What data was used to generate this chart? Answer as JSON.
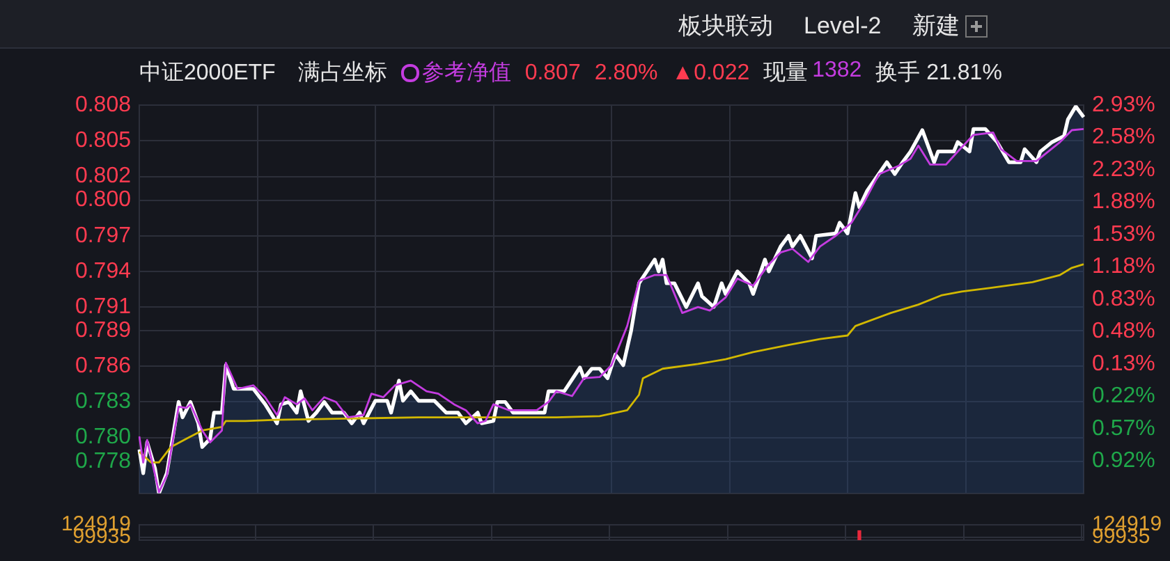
{
  "chart_data": [
    {
      "type": "line",
      "title": "中证2000ETF",
      "legend": "top",
      "grid": true,
      "tick_labels": "y",
      "marker": "none",
      "annotations": [
        "满占坐标",
        "0.807",
        "2.80%",
        "▲0.022",
        "现量",
        "1382",
        "换手 21.81%",
        "板块联动",
        "Level-2",
        "新建"
      ],
      "categories": [
        null,
        null,
        null,
        null,
        null,
        null,
        null,
        null,
        null,
        null,
        null,
        null,
        null,
        null,
        null,
        null,
        null,
        null,
        null,
        null,
        null,
        null,
        null,
        null,
        null,
        null,
        null,
        null,
        null,
        null,
        null,
        null,
        null,
        null,
        null,
        null,
        null,
        null,
        null,
        null,
        null,
        null,
        null,
        null,
        null,
        null,
        null,
        null,
        null,
        null,
        null,
        null,
        null,
        null,
        null,
        null,
        null,
        null,
        null,
        null,
        null,
        null,
        null,
        null,
        null,
        null,
        null,
        null,
        null,
        null,
        null,
        null,
        null,
        null,
        null,
        null,
        null,
        null,
        null,
        null,
        null,
        null,
        null,
        null,
        null,
        null,
        null,
        null,
        null,
        null,
        null,
        null,
        null,
        null,
        null,
        null,
        null,
        null,
        null,
        null,
        null,
        null,
        null,
        null,
        null,
        null,
        null,
        null,
        null,
        null,
        null,
        null,
        null,
        null,
        null,
        null,
        null,
        null,
        null,
        null,
        null,
        null,
        null,
        null,
        null,
        null,
        null,
        null,
        null,
        null,
        null,
        null,
        null,
        null,
        null,
        null,
        null,
        null,
        null,
        null,
        null,
        null,
        null,
        null,
        null,
        null,
        null,
        null,
        null,
        null,
        null,
        null,
        null,
        null,
        null,
        null,
        null,
        null,
        null,
        null,
        null,
        null,
        null,
        null,
        null,
        null,
        null,
        null,
        null,
        null,
        null,
        null,
        null,
        null,
        null,
        null,
        null,
        null,
        null,
        null,
        null,
        null,
        null,
        null,
        null,
        null,
        null,
        null,
        null,
        null,
        null,
        null,
        null,
        null,
        null,
        null,
        null,
        null,
        null,
        null,
        null,
        null,
        null,
        null,
        null,
        null,
        null,
        null,
        null,
        null,
        null,
        null,
        null,
        null,
        null,
        null,
        null,
        null,
        null,
        null,
        null,
        null,
        null,
        null,
        null,
        null,
        null,
        null,
        null,
        null,
        null,
        null,
        null,
        null,
        null,
        null,
        null,
        null,
        null,
        null,
        null
      ],
      "ylim": [
        0.7753,
        0.808
      ],
      "yticks": [
        0.808,
        0.805,
        0.802,
        {
          "value": 0.8,
          "label": "0.800"
        },
        0.797,
        0.794,
        0.791,
        0.789,
        0.786,
        0.783,
        {
          "value": 0.78,
          "label": "0.780"
        },
        0.778
      ],
      "y2lim": [
        -1.27,
        2.93
      ],
      "y2ticks": [
        {
          "value": 2.93,
          "label": "2.93%"
        },
        {
          "value": 2.58,
          "label": "2.58%"
        },
        {
          "value": 2.23,
          "label": "2.23%"
        },
        {
          "value": 1.88,
          "label": "1.88%"
        },
        {
          "value": 1.53,
          "label": "1.53%"
        },
        {
          "value": 1.18,
          "label": "1.18%"
        },
        {
          "value": 0.83,
          "label": "0.83%"
        },
        {
          "value": 0.48,
          "label": "0.48%"
        },
        {
          "value": 0.13,
          "label": "0.13%"
        },
        {
          "value": -0.22,
          "label": "0.22%"
        },
        {
          "value": -0.57,
          "label": "0.57%"
        },
        {
          "value": -0.92,
          "label": "0.92%"
        }
      ],
      "series": [
        {
          "type": "area",
          "color": "#ffffff",
          "values": [
            0.779,
            0.777,
            0.7796,
            null,
            0.7774,
            0.7753,
            null,
            0.777,
            null,
            null,
            0.783,
            0.7817,
            null,
            0.783,
            null,
            0.7812,
            0.7792,
            null,
            0.7799,
            0.7821,
            null,
            0.7821,
            0.7861,
            null,
            0.7841,
            null,
            null,
            null,
            null,
            0.7841,
            null,
            null,
            0.7828,
            null,
            null,
            0.7812,
            0.7828,
            null,
            0.783,
            null,
            0.7821,
            0.7839,
            null,
            0.7814,
            null,
            0.7821,
            null,
            0.783,
            null,
            0.7821,
            null,
            null,
            0.7821,
            null,
            0.7812,
            null,
            0.7821,
            0.7812,
            null,
            null,
            0.7831,
            null,
            null,
            0.7831,
            0.7821,
            null,
            0.7848,
            0.7831,
            null,
            0.7839,
            null,
            0.7831,
            null,
            null,
            null,
            0.7831,
            null,
            null,
            0.7821,
            null,
            null,
            0.7821,
            null,
            0.7812,
            null,
            null,
            0.7821,
            0.7812,
            null,
            null,
            0.7814,
            0.783,
            null,
            0.783,
            null,
            0.7821,
            null,
            null,
            null,
            null,
            null,
            null,
            null,
            0.7821,
            0.7839,
            null,
            null,
            null,
            0.7839,
            null,
            null,
            null,
            0.7859,
            0.785,
            null,
            0.7858,
            null,
            0.7858,
            null,
            0.785,
            null,
            0.787,
            null,
            0.7861,
            null,
            0.789,
            null,
            0.793,
            null,
            0.794,
            null,
            0.795,
            0.794,
            0.795,
            0.793,
            null,
            0.793,
            null,
            null,
            0.791,
            null,
            null,
            0.793,
            0.7919,
            null,
            null,
            0.791,
            null,
            0.793,
            0.7921,
            null,
            null,
            0.794,
            null,
            null,
            0.793,
            0.7921,
            null,
            null,
            0.795,
            0.794,
            null,
            null,
            0.7961,
            null,
            0.797,
            0.7961,
            null,
            0.797,
            null,
            null,
            0.7951,
            0.797,
            null,
            null,
            null,
            null,
            0.7972,
            0.7981,
            null,
            0.7972,
            null,
            0.8006,
            0.7994,
            null,
            0.8008,
            null,
            null,
            null,
            null,
            0.8032,
            null,
            0.8022,
            null,
            0.8032,
            null,
            0.8041,
            null,
            null,
            0.8059,
            null,
            null,
            0.8032,
            0.8041,
            null,
            null,
            null,
            0.8041,
            0.8049,
            null,
            null,
            0.8041,
            0.806,
            null,
            null,
            0.806,
            null,
            null,
            0.8049,
            null,
            null,
            0.8032,
            null,
            null,
            0.8032,
            0.8043,
            null,
            null,
            0.8032,
            0.8041,
            null,
            null,
            0.8049,
            null,
            null,
            0.8054,
            0.8068,
            null,
            0.8079,
            null,
            0.807
          ]
        },
        {
          "color": "#d2b800",
          "values": [
            0.7788,
            null,
            null,
            0.7779,
            null,
            0.7779,
            null,
            null,
            0.7792,
            null,
            null,
            null,
            0.7799,
            null,
            null,
            null,
            0.7806,
            null,
            null,
            null,
            null,
            0.7809,
            0.7814,
            null,
            null,
            null,
            null,
            0.7814,
            null,
            null,
            null,
            null,
            null,
            null,
            null,
            0.7815,
            null,
            null,
            null,
            null,
            null,
            null,
            null,
            null,
            null,
            null,
            null,
            null,
            null,
            null,
            null,
            null,
            null,
            0.7816,
            null,
            null,
            null,
            null,
            null,
            null,
            null,
            null,
            null,
            null,
            null,
            null,
            null,
            null,
            null,
            null,
            null,
            0.7817,
            null,
            null,
            null,
            null,
            null,
            null,
            null,
            null,
            null,
            null,
            null,
            null,
            null,
            null,
            null,
            null,
            null,
            null,
            null,
            null,
            null,
            null,
            null,
            null,
            null,
            null,
            null,
            null,
            null,
            null,
            null,
            null,
            null,
            null,
            0.7817,
            null,
            null,
            null,
            null,
            null,
            null,
            null,
            null,
            null,
            null,
            0.7818,
            null,
            null,
            null,
            null,
            null,
            null,
            0.7823,
            null,
            null,
            0.7836,
            0.785,
            null,
            null,
            null,
            null,
            0.7858,
            null,
            null,
            null,
            null,
            null,
            null,
            null,
            null,
            0.7862,
            null,
            null,
            null,
            null,
            null,
            null,
            0.7866,
            null,
            null,
            null,
            null,
            null,
            null,
            0.7872,
            null,
            null,
            null,
            null,
            null,
            null,
            null,
            null,
            0.7878,
            null,
            null,
            null,
            null,
            null,
            null,
            null,
            0.7883,
            null,
            null,
            null,
            null,
            null,
            null,
            0.7886,
            null,
            0.7894,
            null,
            null,
            null,
            null,
            null,
            null,
            null,
            null,
            0.7905,
            null,
            null,
            null,
            null,
            null,
            null,
            0.7912,
            null,
            null,
            null,
            null,
            null,
            0.792,
            null,
            null,
            null,
            null,
            0.7923,
            null,
            null,
            null,
            null,
            null,
            null,
            0.7926,
            null,
            null,
            null,
            null,
            null,
            null,
            null,
            null,
            null,
            null,
            0.7931,
            null,
            null,
            null,
            null,
            null,
            null,
            0.7937,
            null,
            null,
            0.7943,
            null,
            null,
            0.7946
          ]
        },
        {
          "name": "参考净值",
          "color": "#c43ce0",
          "values": [
            0.7801,
            0.7779,
            0.7798,
            null,
            null,
            0.7754,
            null,
            0.7768,
            null,
            null,
            0.7826,
            null,
            0.7825,
            0.7828,
            null,
            null,
            0.7806,
            null,
            0.7796,
            null,
            null,
            0.7806,
            0.7863,
            null,
            null,
            0.7841,
            null,
            null,
            null,
            0.7844,
            null,
            null,
            0.7834,
            null,
            null,
            0.7819,
            null,
            0.7834,
            null,
            null,
            0.7828,
            null,
            0.7833,
            null,
            0.7823,
            null,
            null,
            0.7834,
            null,
            null,
            0.783,
            null,
            null,
            0.7817,
            null,
            null,
            null,
            0.7819,
            null,
            0.7837,
            null,
            null,
            0.7834,
            null,
            null,
            0.7844,
            null,
            null,
            null,
            0.7848,
            null,
            null,
            null,
            0.7839,
            null,
            null,
            0.7837,
            null,
            null,
            null,
            0.7828,
            null,
            null,
            0.7823,
            null,
            null,
            0.7812,
            null,
            0.7814,
            null,
            0.7828,
            null,
            null,
            null,
            0.7823,
            null,
            null,
            null,
            null,
            null,
            null,
            0.7823,
            null,
            null,
            0.783,
            null,
            0.7839,
            null,
            null,
            null,
            0.7835,
            null,
            null,
            0.785,
            null,
            null,
            null,
            0.7851,
            null,
            null,
            0.7861,
            null,
            null,
            null,
            0.7894,
            null,
            null,
            0.7932,
            null,
            null,
            null,
            0.7937,
            null,
            null,
            0.7937,
            null,
            null,
            null,
            0.7905,
            null,
            null,
            null,
            0.791,
            null,
            null,
            0.7907,
            null,
            null,
            null,
            0.7918,
            null,
            null,
            0.7934,
            null,
            null,
            null,
            0.7928,
            null,
            null,
            null,
            0.7946,
            null,
            null,
            0.7956,
            null,
            null,
            0.7959,
            null,
            null,
            null,
            0.7948,
            null,
            null,
            0.7961,
            null,
            null,
            null,
            0.797,
            null,
            null,
            null,
            0.7981,
            null,
            null,
            0.7997,
            null,
            null,
            null,
            0.8022,
            null,
            null,
            null,
            null,
            0.8029,
            null,
            null,
            0.8035,
            null,
            0.8046,
            null,
            null,
            0.803,
            null,
            null,
            null,
            0.803,
            null,
            null,
            0.8041,
            null,
            null,
            null,
            0.8055,
            null,
            null,
            null,
            null,
            0.8057,
            null,
            0.8043,
            null,
            null,
            null,
            0.8033,
            null,
            null,
            null,
            null,
            0.8033,
            null,
            null,
            null,
            null,
            null,
            0.8049,
            null,
            null,
            0.8059,
            null,
            null,
            0.806
          ]
        }
      ]
    },
    {
      "type": "bar",
      "tick_labels": "y",
      "grid": true,
      "categories": [
        null,
        null,
        null,
        null,
        null,
        null,
        null,
        null,
        null,
        null,
        null,
        null,
        null,
        null,
        null,
        null,
        null,
        null,
        null,
        null,
        null,
        null,
        null,
        null,
        null,
        null,
        null,
        null,
        null,
        null,
        null,
        null,
        null,
        null,
        null,
        null,
        null,
        null,
        null,
        null,
        null,
        null,
        null,
        null,
        null,
        null,
        null,
        null,
        null,
        null,
        null,
        null,
        null,
        null,
        null,
        null,
        null,
        null,
        null,
        null,
        null,
        null,
        null,
        null,
        null,
        null,
        null,
        null,
        null,
        null,
        null,
        null,
        null,
        null,
        null,
        null,
        null,
        null,
        null,
        null,
        null,
        null,
        null,
        null,
        null,
        null,
        null,
        null,
        null,
        null,
        null,
        null,
        null,
        null,
        null,
        null,
        null,
        null,
        null,
        null,
        null,
        null,
        null,
        null,
        null,
        null,
        null,
        null,
        null,
        null,
        null,
        null,
        null,
        null,
        null,
        null,
        null,
        null,
        null,
        null,
        null,
        null,
        null,
        null,
        null,
        null,
        null,
        null,
        null,
        null,
        null,
        null,
        null,
        null,
        null,
        null,
        null,
        null,
        null,
        null,
        null,
        null,
        null,
        null,
        null,
        null,
        null,
        null,
        null,
        null,
        null,
        null,
        null,
        null,
        null,
        null,
        null,
        null,
        null,
        null,
        null,
        null,
        null,
        null,
        null,
        null,
        null,
        null,
        null,
        null,
        null,
        null,
        null,
        null,
        null,
        null,
        null,
        null,
        null,
        null,
        null,
        null,
        null,
        null,
        null,
        null,
        null,
        null,
        null,
        null,
        null,
        null,
        null,
        null,
        null,
        null,
        null,
        null,
        null,
        null,
        null,
        null,
        null,
        null,
        null,
        null,
        null,
        null,
        null,
        null,
        null,
        null,
        null,
        null,
        null,
        null,
        null,
        null,
        null,
        null,
        null,
        null,
        null,
        null,
        null,
        null,
        null,
        null,
        null,
        null,
        null,
        null,
        null,
        null,
        null,
        null,
        null,
        null,
        null,
        null,
        null
      ],
      "series": [
        {
          "color": "#e8283c",
          "values": [
            null,
            null,
            null,
            null,
            null,
            null,
            null,
            null,
            null,
            null,
            null,
            null,
            null,
            null,
            null,
            null,
            null,
            null,
            null,
            null,
            null,
            null,
            null,
            null,
            null,
            null,
            null,
            null,
            null,
            null,
            null,
            null,
            null,
            null,
            null,
            null,
            null,
            null,
            null,
            null,
            null,
            null,
            null,
            null,
            null,
            null,
            null,
            null,
            null,
            null,
            null,
            null,
            null,
            null,
            null,
            null,
            null,
            null,
            null,
            null,
            null,
            null,
            null,
            null,
            null,
            null,
            null,
            null,
            null,
            null,
            null,
            null,
            null,
            null,
            null,
            null,
            null,
            null,
            null,
            null,
            null,
            null,
            null,
            null,
            null,
            null,
            null,
            null,
            null,
            null,
            null,
            null,
            null,
            null,
            null,
            null,
            null,
            null,
            null,
            null,
            null,
            null,
            null,
            null,
            null,
            null,
            null,
            null,
            null,
            null,
            null,
            null,
            null,
            null,
            null,
            null,
            null,
            null,
            null,
            null,
            null,
            null,
            null,
            null,
            null,
            null,
            null,
            null,
            null,
            null,
            null,
            null,
            null,
            null,
            null,
            null,
            null,
            null,
            null,
            null,
            null,
            null,
            null,
            null,
            null,
            null,
            null,
            null,
            null,
            null,
            null,
            null,
            null,
            null,
            null,
            null,
            null,
            null,
            null,
            null,
            null,
            null,
            null,
            null,
            null,
            null,
            null,
            null,
            null,
            null,
            null,
            null,
            null,
            null,
            null,
            null,
            null,
            null,
            null,
            null,
            null,
            null,
            null,
            113000,
            null,
            null,
            null,
            null,
            null,
            null,
            null,
            null,
            null,
            null,
            null,
            null,
            null,
            null,
            null,
            null,
            null,
            null,
            null,
            null,
            null,
            null,
            null,
            null,
            null,
            null,
            null,
            null,
            null,
            null,
            null,
            null,
            null,
            null,
            null,
            null,
            null,
            null,
            null,
            null,
            null,
            null,
            null,
            null,
            null,
            null,
            null,
            null,
            null,
            null,
            null,
            null,
            null,
            null,
            null,
            null,
            null
          ]
        }
      ],
      "ylim": [
        94200,
        124919
      ],
      "yticks": [
        99935,
        124919
      ],
      "y2lim": [
        94200,
        124919
      ],
      "y2ticks": [
        99935,
        124919
      ]
    }
  ]
}
